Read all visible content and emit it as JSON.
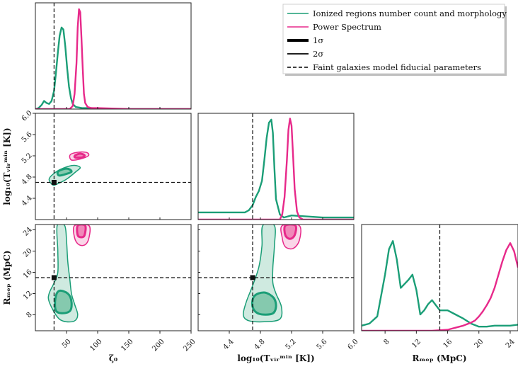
{
  "colors": {
    "morph": "#1b9e77",
    "ps": "#e7298a",
    "morph_fill": "#bfe3d6",
    "ps_fill": "#f8c8e0",
    "morph_fill_1s": "#7cc5a9",
    "ps_fill_1s": "#ee7fb4"
  },
  "legend": {
    "items": [
      {
        "label": "Ionized regions number count and morphology",
        "style": "green-line"
      },
      {
        "label": "Power Spectrum",
        "style": "pink-line"
      },
      {
        "label": "1σ",
        "style": "thick-line"
      },
      {
        "label": "2σ",
        "style": "thin-line"
      },
      {
        "label": "Faint galaxies model fiducial parameters",
        "style": "dashed-line"
      }
    ]
  },
  "chart_data": {
    "type": "line",
    "title": "",
    "parameters": [
      {
        "name": "zeta0",
        "range": [
          0,
          250
        ],
        "ticks": [
          "50",
          "100",
          "150",
          "200",
          "250"
        ],
        "tick_values": [
          50,
          100,
          150,
          200,
          250
        ],
        "fiducial": 30
      },
      {
        "name": "log10Tvir",
        "range": [
          4.0,
          6.0
        ],
        "ticks": [
          "4.4",
          "4.8",
          "5.2",
          "5.6",
          "6.0"
        ],
        "tick_values": [
          4.4,
          4.8,
          5.2,
          5.6,
          6.0
        ],
        "fiducial": 4.7
      },
      {
        "name": "Rmfp",
        "range": [
          5,
          25
        ],
        "ticks": [
          "8",
          "12",
          "16",
          "20",
          "24"
        ],
        "tick_values": [
          8,
          12,
          16,
          20,
          24
        ],
        "fiducial": 15
      }
    ],
    "axis_labels": {
      "zeta0": "ζ₀",
      "log10Tvir_x": "log₁₀(Tᵥᵢᵣᵐⁱⁿ [K])",
      "log10Tvir_y": "log₁₀(Tᵥᵢᵣᵐⁱⁿ [K])",
      "Rmfp_x": "Rₘₒₚ (MpC)",
      "Rmfp_y": "Rₘₒₚ (MpC)"
    },
    "y_ticks_T": [
      "4.4",
      "4.8",
      "5.2",
      "5.6",
      "6.0"
    ],
    "y_tick_values_T": [
      4.4,
      4.8,
      5.2,
      5.6,
      6.0
    ],
    "y_ticks_R": [
      "8",
      "12",
      "16",
      "20",
      "24"
    ],
    "y_tick_values_R": [
      8,
      12,
      16,
      20,
      24
    ],
    "series": [
      {
        "name": "Ionized regions number count and morphology",
        "marginals": {
          "zeta0": {
            "x": [
              0,
              5,
              10,
              14,
              18,
              22,
              26,
              30,
              33,
              36,
              39,
              42,
              45,
              48,
              51,
              54,
              57,
              60,
              65,
              75,
              90,
              120,
              180,
              250
            ],
            "y": [
              0.0,
              0.01,
              0.04,
              0.08,
              0.06,
              0.05,
              0.08,
              0.18,
              0.35,
              0.55,
              0.72,
              0.8,
              0.78,
              0.62,
              0.4,
              0.22,
              0.11,
              0.05,
              0.02,
              0.01,
              0.01,
              0.0,
              0.0,
              0.0
            ]
          },
          "log10Tvir": {
            "x": [
              4.0,
              4.4,
              4.6,
              4.65,
              4.7,
              4.74,
              4.78,
              4.82,
              4.85,
              4.88,
              4.91,
              4.94,
              4.96,
              4.98,
              5.0,
              5.05,
              5.1,
              5.2,
              5.6,
              6.0
            ],
            "y": [
              0.07,
              0.07,
              0.07,
              0.09,
              0.14,
              0.22,
              0.28,
              0.38,
              0.58,
              0.8,
              0.95,
              0.98,
              0.85,
              0.5,
              0.2,
              0.05,
              0.02,
              0.04,
              0.02,
              0.02
            ]
          },
          "Rmfp": {
            "x": [
              5,
              6,
              7,
              8,
              8.5,
              9,
              9.5,
              10,
              10.5,
              11,
              11.5,
              12,
              12.5,
              13,
              13.5,
              14,
              14.5,
              15,
              16,
              17,
              18,
              19,
              20,
              21,
              22,
              23,
              24,
              25
            ],
            "y": [
              0.05,
              0.07,
              0.14,
              0.55,
              0.8,
              0.88,
              0.7,
              0.42,
              0.46,
              0.5,
              0.55,
              0.4,
              0.16,
              0.2,
              0.26,
              0.3,
              0.25,
              0.2,
              0.2,
              0.16,
              0.12,
              0.07,
              0.04,
              0.04,
              0.05,
              0.05,
              0.05,
              0.06
            ]
          }
        }
      },
      {
        "name": "Power Spectrum",
        "marginals": {
          "zeta0": {
            "x": [
              0,
              55,
              60,
              63,
              66,
              68,
              70,
              72,
              74,
              76,
              78,
              80,
              84,
              90,
              100,
              150,
              250
            ],
            "y": [
              0.0,
              0.0,
              0.03,
              0.15,
              0.45,
              0.8,
              0.98,
              0.95,
              0.7,
              0.4,
              0.15,
              0.06,
              0.02,
              0.01,
              0.01,
              0.0,
              0.0
            ]
          },
          "log10Tvir": {
            "x": [
              4.0,
              5.05,
              5.08,
              5.11,
              5.14,
              5.16,
              5.18,
              5.2,
              5.22,
              5.24,
              5.27,
              5.3,
              5.35,
              6.0
            ],
            "y": [
              0.0,
              0.0,
              0.05,
              0.22,
              0.58,
              0.88,
              0.99,
              0.92,
              0.62,
              0.3,
              0.08,
              0.02,
              0.0,
              0.0
            ]
          },
          "Rmfp": {
            "x": [
              5,
              14,
              16,
              17,
              18,
              19,
              19.5,
              20,
              20.5,
              21,
              21.5,
              22,
              22.5,
              23,
              23.5,
              24,
              24.5,
              25
            ],
            "y": [
              0.0,
              0.0,
              0.01,
              0.03,
              0.05,
              0.08,
              0.1,
              0.14,
              0.19,
              0.25,
              0.32,
              0.42,
              0.55,
              0.68,
              0.79,
              0.86,
              0.78,
              0.62
            ]
          }
        }
      }
    ],
    "contours": [
      {
        "series": 0,
        "panel": "zeta0-T",
        "level": "2sigma",
        "points": [
          [
            28,
            4.65
          ],
          [
            35,
            4.67
          ],
          [
            50,
            4.76
          ],
          [
            65,
            4.9
          ],
          [
            72,
            4.98
          ],
          [
            62,
            5.02
          ],
          [
            45,
            4.97
          ],
          [
            30,
            4.87
          ],
          [
            22,
            4.76
          ]
        ]
      },
      {
        "series": 0,
        "panel": "zeta0-T",
        "level": "1sigma",
        "points": [
          [
            38,
            4.83
          ],
          [
            50,
            4.86
          ],
          [
            58,
            4.9
          ],
          [
            54,
            4.95
          ],
          [
            45,
            4.95
          ],
          [
            36,
            4.9
          ]
        ]
      },
      {
        "series": 1,
        "panel": "zeta0-T",
        "level": "2sigma",
        "points": [
          [
            58,
            5.12
          ],
          [
            72,
            5.14
          ],
          [
            85,
            5.2
          ],
          [
            83,
            5.26
          ],
          [
            70,
            5.27
          ],
          [
            56,
            5.22
          ]
        ]
      },
      {
        "series": 1,
        "panel": "zeta0-T",
        "level": "1sigma",
        "points": [
          [
            64,
            5.17
          ],
          [
            75,
            5.17
          ],
          [
            79,
            5.21
          ],
          [
            72,
            5.24
          ],
          [
            64,
            5.21
          ]
        ]
      },
      {
        "series": 0,
        "panel": "zeta0-R",
        "level": "2sigma",
        "points": [
          [
            35,
            24.8
          ],
          [
            47,
            24.8
          ],
          [
            50,
            22
          ],
          [
            52,
            18
          ],
          [
            55,
            15
          ],
          [
            58,
            12
          ],
          [
            63,
            10
          ],
          [
            68,
            8
          ],
          [
            62,
            6.8
          ],
          [
            45,
            6.8
          ],
          [
            34,
            7.8
          ],
          [
            22,
            10.5
          ],
          [
            22,
            12
          ],
          [
            30,
            14
          ],
          [
            36,
            16
          ],
          [
            36,
            20
          ]
        ]
      },
      {
        "series": 0,
        "panel": "zeta0-R",
        "level": "1sigma",
        "points": [
          [
            32,
            11
          ],
          [
            38,
            12.5
          ],
          [
            52,
            12
          ],
          [
            58,
            10.5
          ],
          [
            56,
            8.8
          ],
          [
            44,
            8.3
          ],
          [
            33,
            8.8
          ]
        ]
      },
      {
        "series": 1,
        "panel": "zeta0-R",
        "level": "2sigma",
        "points": [
          [
            63,
            24.8
          ],
          [
            86,
            24.8
          ],
          [
            86,
            22.5
          ],
          [
            80,
            21.2
          ],
          [
            70,
            21.2
          ],
          [
            63,
            22.5
          ]
        ]
      },
      {
        "series": 1,
        "panel": "zeta0-R",
        "level": "1sigma",
        "points": [
          [
            68,
            24.8
          ],
          [
            80,
            24.8
          ],
          [
            79,
            23
          ],
          [
            74,
            22.6
          ],
          [
            68,
            23
          ]
        ]
      },
      {
        "series": 0,
        "panel": "T-R",
        "level": "2sigma",
        "points": [
          [
            4.83,
            24.8
          ],
          [
            4.98,
            24.8
          ],
          [
            4.98,
            21
          ],
          [
            4.96,
            17
          ],
          [
            4.96,
            14
          ],
          [
            5.0,
            12
          ],
          [
            5.07,
            9.5
          ],
          [
            5.05,
            7.2
          ],
          [
            4.85,
            6.7
          ],
          [
            4.65,
            6.9
          ],
          [
            4.58,
            8
          ],
          [
            4.62,
            10.5
          ],
          [
            4.7,
            13.5
          ],
          [
            4.78,
            17
          ],
          [
            4.82,
            21
          ]
        ]
      },
      {
        "series": 0,
        "panel": "T-R",
        "level": "1sigma",
        "points": [
          [
            4.72,
            11.5
          ],
          [
            4.85,
            12.2
          ],
          [
            4.97,
            11.2
          ],
          [
            5.0,
            9.5
          ],
          [
            4.95,
            8.2
          ],
          [
            4.78,
            8.2
          ],
          [
            4.7,
            9.5
          ]
        ]
      },
      {
        "series": 1,
        "panel": "T-R",
        "level": "2sigma",
        "points": [
          [
            5.08,
            24.8
          ],
          [
            5.3,
            24.8
          ],
          [
            5.3,
            22
          ],
          [
            5.22,
            20.5
          ],
          [
            5.12,
            20.8
          ],
          [
            5.08,
            22.5
          ]
        ]
      },
      {
        "series": 1,
        "panel": "T-R",
        "level": "1sigma",
        "points": [
          [
            5.12,
            24.8
          ],
          [
            5.25,
            24.8
          ],
          [
            5.24,
            23
          ],
          [
            5.18,
            22.3
          ],
          [
            5.12,
            23
          ]
        ]
      }
    ],
    "fiducial_point": {
      "zeta0": 30,
      "log10Tvir": 4.7,
      "Rmfp": 15
    }
  }
}
